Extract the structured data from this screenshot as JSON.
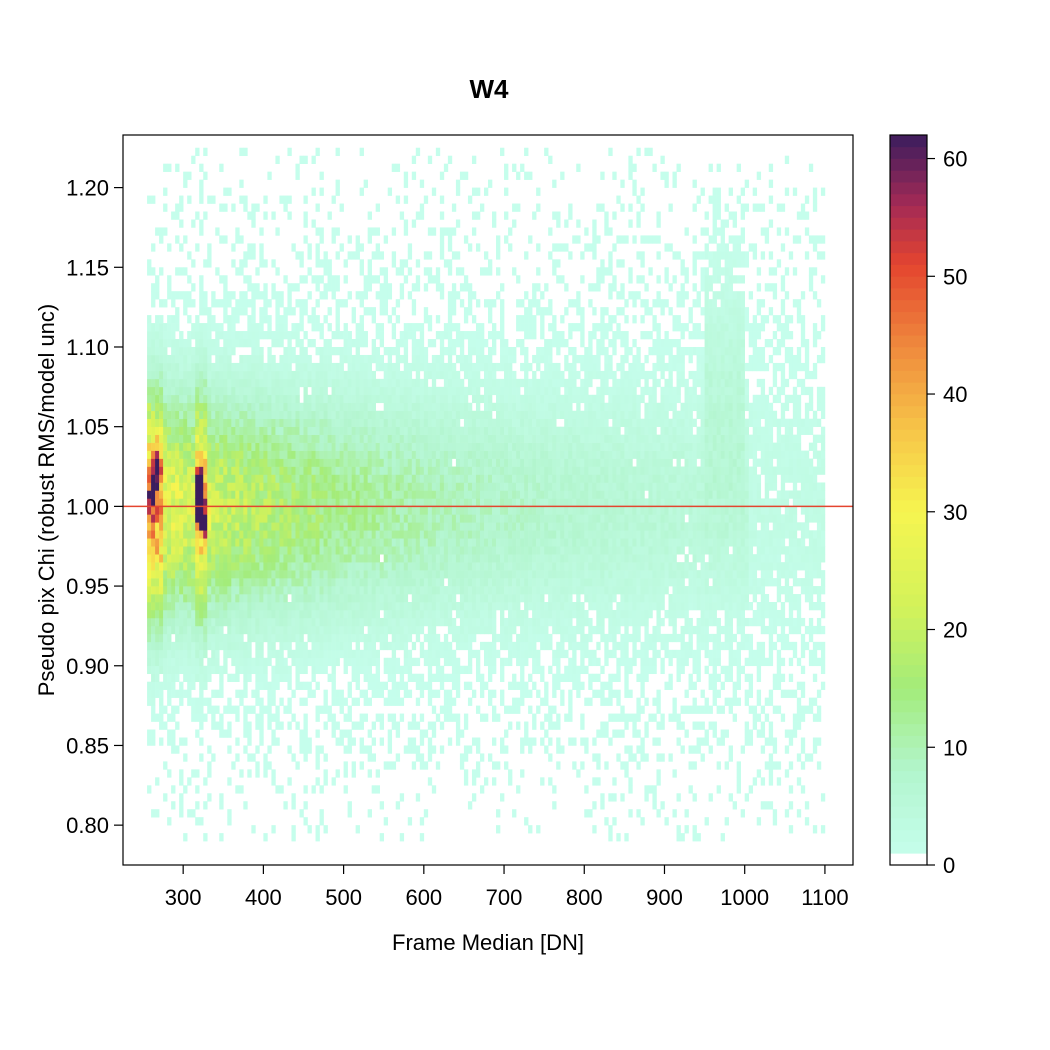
{
  "chart_data": {
    "type": "heatmap",
    "title": "W4",
    "xlabel": "Frame Median [DN]",
    "ylabel": "Pseudo pix Chi (robust RMS/model unc)",
    "xlim": [
      225,
      1135
    ],
    "ylim": [
      0.775,
      1.233
    ],
    "x_ticks": [
      300,
      400,
      500,
      600,
      700,
      800,
      900,
      1000,
      1100
    ],
    "y_ticks": [
      0.8,
      0.85,
      0.9,
      0.95,
      1.0,
      1.05,
      1.1,
      1.15,
      1.2
    ],
    "x_tick_labels": [
      "300",
      "400",
      "500",
      "600",
      "700",
      "800",
      "900",
      "1000",
      "1100"
    ],
    "y_tick_labels": [
      "0.80",
      "0.85",
      "0.90",
      "0.95",
      "1.00",
      "1.05",
      "1.10",
      "1.15",
      "1.20"
    ],
    "bin_width_x": 5,
    "bin_height_y": 0.005,
    "data_extent_x": [
      255,
      1100
    ],
    "data_extent_y": [
      0.79,
      1.22
    ],
    "count_scale": {
      "min": 0,
      "max": 62
    },
    "colorbar_ticks": [
      0,
      10,
      20,
      30,
      40,
      50,
      60
    ],
    "colorbar_tick_labels": [
      "0",
      "10",
      "20",
      "30",
      "40",
      "50",
      "60"
    ],
    "color_stops": [
      {
        "value": 0,
        "color": "#c8fff0"
      },
      {
        "value": 8,
        "color": "#b2f5cd"
      },
      {
        "value": 15,
        "color": "#a3ec7a"
      },
      {
        "value": 22,
        "color": "#d3f25a"
      },
      {
        "value": 30,
        "color": "#f6f550"
      },
      {
        "value": 37,
        "color": "#f7c548"
      },
      {
        "value": 44,
        "color": "#ef8a3d"
      },
      {
        "value": 51,
        "color": "#e4452f"
      },
      {
        "value": 56,
        "color": "#a52a55"
      },
      {
        "value": 62,
        "color": "#3b1d5e"
      }
    ],
    "density_peaks": [
      {
        "x": 262,
        "y": 1.01,
        "count": 55
      },
      {
        "x": 268,
        "y": 1.025,
        "count": 48
      },
      {
        "x": 320,
        "y": 1.0,
        "count": 62
      },
      {
        "x": 322,
        "y": 1.015,
        "count": 58
      },
      {
        "x": 327,
        "y": 0.99,
        "count": 45
      }
    ],
    "reference_line": {
      "y": 1.0,
      "color": "#e4452f"
    },
    "grid": false,
    "legend": "colorbar-right"
  }
}
